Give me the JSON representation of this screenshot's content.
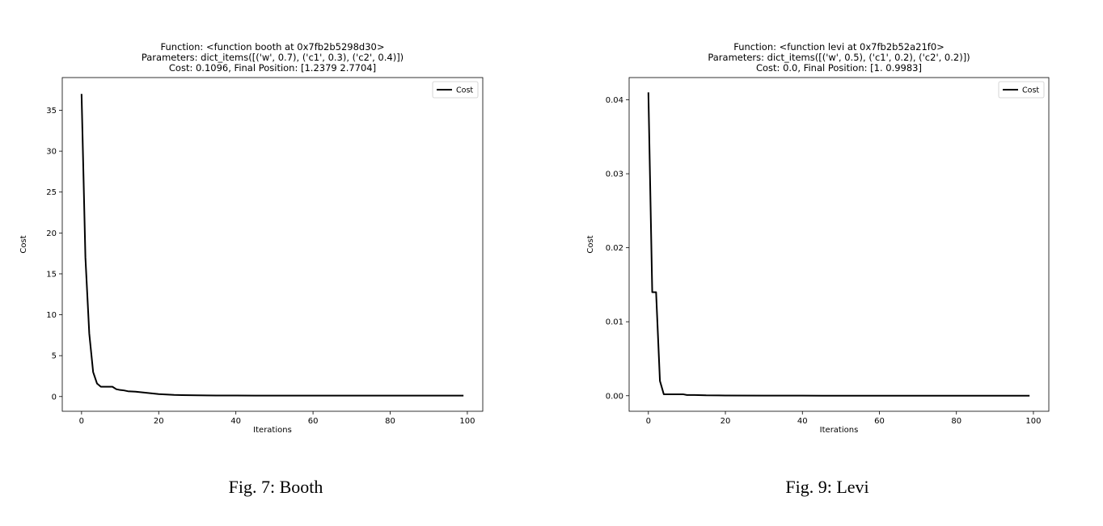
{
  "chart_data": [
    {
      "type": "line",
      "title_lines": [
        "Function: <function booth at 0x7fb2b5298d30>",
        "Parameters: dict_items([('w', 0.7), ('c1', 0.3), ('c2', 0.4)])",
        "Cost: 0.1096, Final Position: [1.2379 2.7704]"
      ],
      "xlabel": "Iterations",
      "ylabel": "Cost",
      "xlim": [
        -5,
        104
      ],
      "ylim": [
        -1.8,
        39
      ],
      "xticks": [
        0,
        20,
        40,
        60,
        80,
        100
      ],
      "yticks": [
        0,
        5,
        10,
        15,
        20,
        25,
        30,
        35
      ],
      "ytick_labels": [
        "0",
        "5",
        "10",
        "15",
        "20",
        "25",
        "30",
        "35"
      ],
      "legend": "upper-right",
      "series": [
        {
          "name": "Cost",
          "color": "#000000",
          "x": [
            0,
            1,
            2,
            3,
            4,
            5,
            6,
            7,
            8,
            9,
            10,
            11,
            12,
            13,
            14,
            15,
            16,
            17,
            18,
            19,
            20,
            22,
            24,
            26,
            28,
            30,
            35,
            40,
            45,
            50,
            60,
            70,
            80,
            90,
            99
          ],
          "y": [
            37.0,
            17.0,
            7.7,
            3.0,
            1.6,
            1.2,
            1.2,
            1.2,
            1.2,
            0.9,
            0.8,
            0.75,
            0.65,
            0.62,
            0.6,
            0.55,
            0.5,
            0.45,
            0.4,
            0.35,
            0.3,
            0.25,
            0.2,
            0.18,
            0.16,
            0.15,
            0.13,
            0.12,
            0.115,
            0.112,
            0.11,
            0.11,
            0.11,
            0.11,
            0.1096
          ]
        }
      ]
    },
    {
      "type": "line",
      "title_lines": [
        "Function: <function levi at 0x7fb2b52a21f0>",
        "Parameters: dict_items([('w', 0.5), ('c1', 0.2), ('c2', 0.2)])",
        "Cost: 0.0, Final Position: [1.      0.9983]"
      ],
      "xlabel": "Iterations",
      "ylabel": "Cost",
      "xlim": [
        -5,
        104
      ],
      "ylim": [
        -0.0021,
        0.043
      ],
      "xticks": [
        0,
        20,
        40,
        60,
        80,
        100
      ],
      "yticks": [
        0,
        0.01,
        0.02,
        0.03,
        0.04
      ],
      "ytick_labels": [
        "0.00",
        "0.01",
        "0.02",
        "0.03",
        "0.04"
      ],
      "legend": "upper-right",
      "series": [
        {
          "name": "Cost",
          "color": "#000000",
          "x": [
            0,
            1,
            2,
            3,
            4,
            5,
            6,
            7,
            8,
            9,
            10,
            12,
            15,
            20,
            30,
            40,
            60,
            80,
            99
          ],
          "y": [
            0.041,
            0.014,
            0.014,
            0.002,
            0.0002,
            0.0002,
            0.0002,
            0.0002,
            0.0002,
            0.0002,
            0.0001,
            0.0001,
            5e-05,
            3e-05,
            2e-05,
            1e-05,
            0.0,
            0.0,
            0.0
          ]
        }
      ]
    }
  ],
  "captions": [
    "Fig. 7: Booth",
    "Fig. 9: Levi"
  ]
}
